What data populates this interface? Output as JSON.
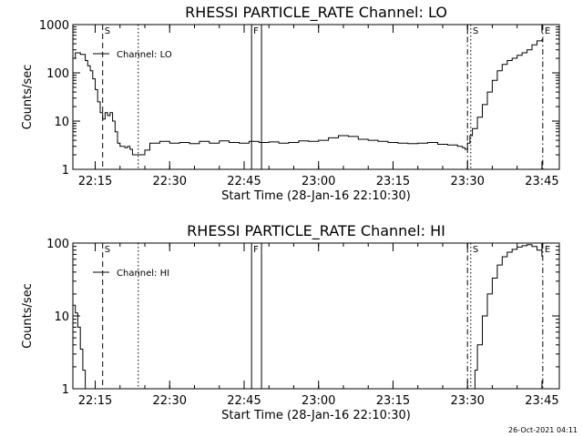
{
  "chart_data": [
    {
      "type": "line",
      "title": "RHESSI PARTICLE_RATE Channel: LO",
      "xlabel": "Start Time (28-Jan-16 22:10:30)",
      "ylabel": "Counts/sec",
      "y_scale": "log",
      "ylim": [
        1,
        1000
      ],
      "y_ticks": [
        "1",
        "10",
        "100",
        "1000"
      ],
      "x_range": [
        "22:10:30",
        "23:48:30"
      ],
      "x_ticks": [
        "22:15",
        "22:30",
        "22:45",
        "23:00",
        "23:15",
        "23:30",
        "23:45"
      ],
      "grid": false,
      "legend": {
        "position": "top-left",
        "entries": [
          "Channel: LO"
        ]
      },
      "markers": [
        {
          "time": "22:16:30",
          "style": "dashed",
          "label": "S"
        },
        {
          "time": "22:23:40",
          "style": "dotted",
          "label": ""
        },
        {
          "time": "22:46:30",
          "style": "solid",
          "label": "F"
        },
        {
          "time": "22:48:30",
          "style": "solid",
          "label": ""
        },
        {
          "time": "23:30:00",
          "style": "dashdot",
          "label": ""
        },
        {
          "time": "23:30:40",
          "style": "dotted",
          "label": "S"
        },
        {
          "time": "23:45:10",
          "style": "dashdot",
          "label": "E"
        }
      ],
      "series": [
        {
          "x": [
            "22:10:30",
            "22:11:00",
            "22:12:00",
            "22:13:00",
            "22:13:30",
            "22:14:00",
            "22:14:30",
            "22:15:00",
            "22:15:30",
            "22:16:00",
            "22:16:30",
            "22:17:00",
            "22:17:30",
            "22:18:00",
            "22:18:30",
            "22:19:00",
            "22:19:30",
            "22:20:00",
            "22:20:30",
            "22:21:00",
            "22:21:30",
            "22:22:00",
            "22:22:30",
            "22:23:00",
            "22:23:30",
            "22:24:00",
            "22:25:00",
            "22:26:00",
            "22:28:00",
            "22:30:00",
            "22:32:00",
            "22:34:00",
            "22:36:00",
            "22:38:00",
            "22:40:00",
            "22:42:00",
            "22:44:00",
            "22:46:00",
            "22:48:00",
            "22:50:00",
            "22:52:00",
            "22:54:00",
            "22:56:00",
            "22:58:00",
            "23:00:00",
            "23:02:00",
            "23:04:00",
            "23:06:00",
            "23:08:00",
            "23:10:00",
            "23:12:00",
            "23:14:00",
            "23:16:00",
            "23:18:00",
            "23:20:00",
            "23:22:00",
            "23:24:00",
            "23:26:00",
            "23:28:00",
            "23:29:00",
            "23:29:30",
            "23:30:00",
            "23:30:30",
            "23:31:00",
            "23:32:00",
            "23:33:00",
            "23:34:00",
            "23:35:00",
            "23:36:00",
            "23:37:00",
            "23:38:00",
            "23:39:00",
            "23:40:00",
            "23:41:00",
            "23:42:00",
            "23:43:00",
            "23:44:00",
            "23:45:00"
          ],
          "y": [
            200,
            260,
            240,
            180,
            140,
            110,
            75,
            45,
            25,
            15,
            11,
            15,
            13,
            15,
            10,
            6,
            3.5,
            3,
            3,
            2.8,
            3,
            2.6,
            2,
            2,
            2,
            2,
            2.5,
            3.5,
            3.8,
            3.5,
            3.6,
            3.4,
            3.8,
            3.5,
            3.9,
            3.6,
            3.5,
            3.8,
            3.6,
            3.7,
            3.5,
            3.6,
            3.9,
            3.8,
            4,
            4.5,
            5,
            4.8,
            4.2,
            4,
            3.8,
            3.6,
            3.5,
            3.4,
            3.5,
            3.6,
            3.3,
            3.2,
            3.0,
            2.8,
            2.6,
            3.5,
            5,
            7,
            12,
            22,
            40,
            70,
            110,
            150,
            180,
            200,
            230,
            260,
            300,
            380,
            460,
            500
          ]
        }
      ]
    },
    {
      "type": "line",
      "title": "RHESSI PARTICLE_RATE Channel: HI",
      "xlabel": "Start Time (28-Jan-16 22:10:30)",
      "ylabel": "Counts/sec",
      "y_scale": "log",
      "ylim": [
        1,
        100
      ],
      "y_ticks": [
        "1",
        "10",
        "100"
      ],
      "x_range": [
        "22:10:30",
        "23:48:30"
      ],
      "x_ticks": [
        "22:15",
        "22:30",
        "22:45",
        "23:00",
        "23:15",
        "23:30",
        "23:45"
      ],
      "grid": false,
      "legend": {
        "position": "top-left",
        "entries": [
          "Channel: HI"
        ]
      },
      "markers": [
        {
          "time": "22:16:30",
          "style": "dashed",
          "label": "S"
        },
        {
          "time": "22:23:40",
          "style": "dotted",
          "label": ""
        },
        {
          "time": "22:46:30",
          "style": "solid",
          "label": "F"
        },
        {
          "time": "22:48:30",
          "style": "solid",
          "label": ""
        },
        {
          "time": "23:30:00",
          "style": "dashdot",
          "label": ""
        },
        {
          "time": "23:30:40",
          "style": "dotted",
          "label": "S"
        },
        {
          "time": "23:45:10",
          "style": "dashdot",
          "label": "E"
        }
      ],
      "series": [
        {
          "x": [
            "22:10:30",
            "22:11:00",
            "22:11:30",
            "22:12:00",
            "22:12:30",
            "22:13:00",
            "23:31:00",
            "23:31:30",
            "23:32:00",
            "23:33:00",
            "23:34:00",
            "23:35:00",
            "23:36:00",
            "23:37:00",
            "23:38:00",
            "23:39:00",
            "23:40:00",
            "23:41:00",
            "23:42:00",
            "23:43:00",
            "23:44:00",
            "23:45:00"
          ],
          "y": [
            14,
            11,
            7,
            3.5,
            1.8,
            1,
            1,
            1.8,
            4,
            10,
            20,
            33,
            50,
            65,
            75,
            82,
            88,
            92,
            95,
            90,
            80,
            65
          ]
        }
      ]
    }
  ],
  "timestamp": "26-Oct-2021 04:11"
}
